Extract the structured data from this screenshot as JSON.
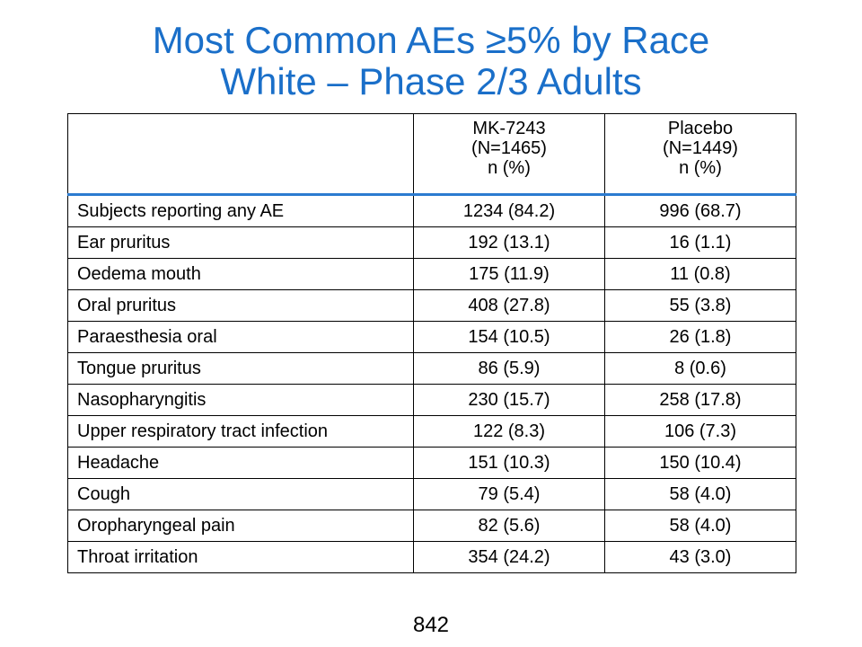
{
  "title": {
    "line1": "Most Common AEs ≥5% by Race",
    "line2": "White – Phase 2/3 Adults"
  },
  "table": {
    "header": {
      "col1": "",
      "col2": [
        "MK-7243",
        "(N=1465)",
        "n (%)"
      ],
      "col3": [
        "Placebo",
        "(N=1449)",
        "n (%)"
      ]
    },
    "rows": [
      {
        "label": "Subjects reporting any AE",
        "mk7243": "1234 (84.2)",
        "placebo": "996 (68.7)"
      },
      {
        "label": "Ear pruritus",
        "mk7243": "192 (13.1)",
        "placebo": "16 (1.1)"
      },
      {
        "label": "Oedema mouth",
        "mk7243": "175 (11.9)",
        "placebo": "11 (0.8)"
      },
      {
        "label": "Oral pruritus",
        "mk7243": "408 (27.8)",
        "placebo": "55 (3.8)"
      },
      {
        "label": "Paraesthesia oral",
        "mk7243": "154 (10.5)",
        "placebo": "26 (1.8)"
      },
      {
        "label": "Tongue pruritus",
        "mk7243": "86 (5.9)",
        "placebo": "8 (0.6)"
      },
      {
        "label": "Nasopharyngitis",
        "mk7243": "230 (15.7)",
        "placebo": "258 (17.8)"
      },
      {
        "label": "Upper respiratory tract infection",
        "mk7243": "122 (8.3)",
        "placebo": "106 (7.3)"
      },
      {
        "label": "Headache",
        "mk7243": "151 (10.3)",
        "placebo": "150 (10.4)"
      },
      {
        "label": "Cough",
        "mk7243": "79 (5.4)",
        "placebo": "58 (4.0)"
      },
      {
        "label": "Oropharyngeal pain",
        "mk7243": "82 (5.6)",
        "placebo": "58 (4.0)"
      },
      {
        "label": "Throat irritation",
        "mk7243": "354 (24.2)",
        "placebo": "43 (3.0)"
      }
    ]
  },
  "page_number": "842",
  "colors": {
    "title": "#1a6fc9",
    "header_rule": "#2b7bd0"
  }
}
